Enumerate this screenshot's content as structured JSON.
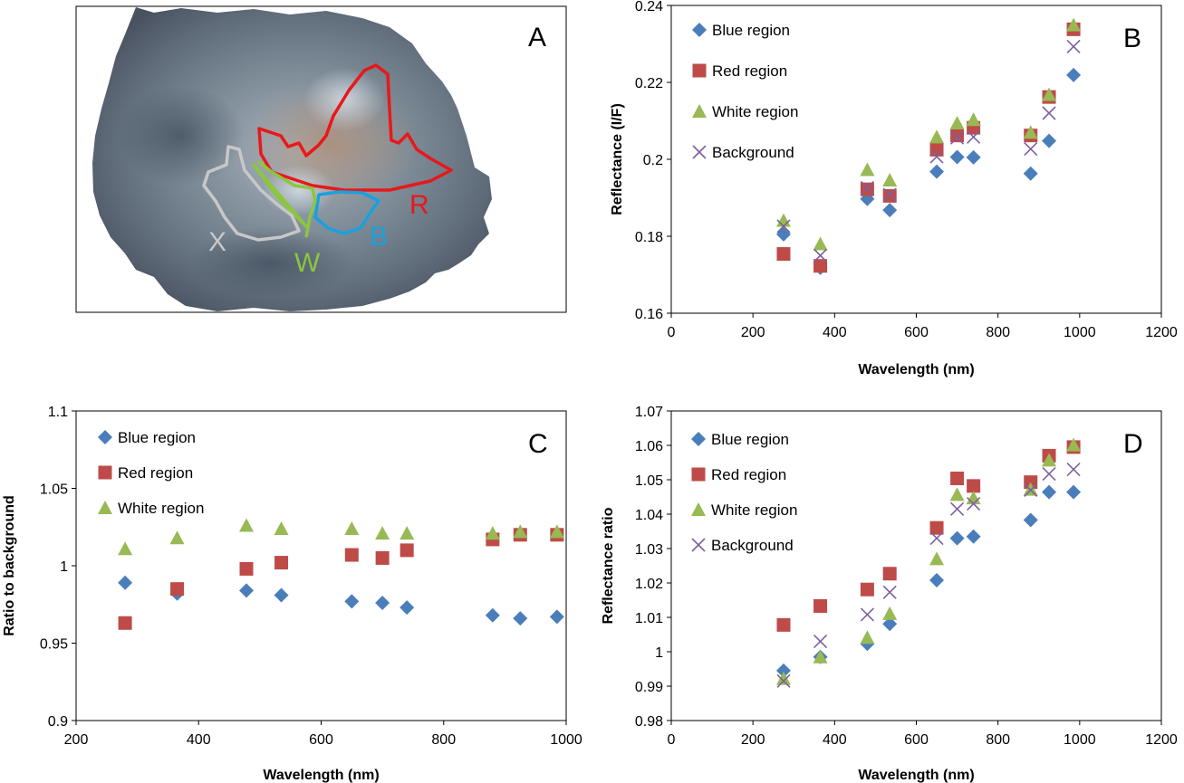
{
  "colors": {
    "blue": "#4a7ebb",
    "red": "#be4b48",
    "green": "#98b954",
    "purple": "#7d60a0",
    "roi_red": "#e8181a",
    "roi_blue": "#1aa0e0",
    "roi_green": "#8cc63e",
    "roi_white": "#c8c8c8"
  },
  "panel_a": {
    "letter": "A",
    "labels": {
      "R": "R",
      "B": "B",
      "W": "W",
      "X": "X"
    }
  },
  "chart_data": [
    {
      "id": "B",
      "type": "scatter",
      "letter": "B",
      "xlabel": "Wavelength (nm)",
      "ylabel": "Reflectance (I/F)",
      "xlim": [
        0,
        1200
      ],
      "ylim": [
        0.16,
        0.24
      ],
      "xticks": [
        0,
        200,
        400,
        600,
        800,
        1000,
        1200
      ],
      "yticks": [
        0.16,
        0.18,
        0.2,
        0.22,
        0.24
      ],
      "xtick_labels": [
        "0",
        "200",
        "400",
        "600",
        "800",
        "1000",
        "1200"
      ],
      "ytick_labels": [
        "0.16",
        "0.18",
        "0.2",
        "0.22",
        "0.24"
      ],
      "legend_position": "top-left",
      "x": [
        275,
        365,
        480,
        535,
        650,
        700,
        740,
        880,
        925,
        985
      ],
      "series": [
        {
          "name": "Blue region",
          "marker": "diamond",
          "color": "#4a7ebb",
          "values": [
            0.1805,
            0.1718,
            0.1897,
            0.1868,
            0.1968,
            0.2006,
            0.2005,
            0.1963,
            0.2048,
            0.2219
          ]
        },
        {
          "name": "Red region",
          "marker": "square",
          "color": "#be4b48",
          "values": [
            0.1754,
            0.1723,
            0.1922,
            0.1905,
            0.2025,
            0.2062,
            0.2082,
            0.2062,
            0.2162,
            0.2338
          ]
        },
        {
          "name": "White region",
          "marker": "triangle",
          "color": "#98b954",
          "values": [
            0.1841,
            0.178,
            0.1973,
            0.1946,
            0.2058,
            0.2094,
            0.2103,
            0.207,
            0.2168,
            0.2349
          ]
        },
        {
          "name": "Background",
          "marker": "x",
          "color": "#7d60a0",
          "values": [
            0.1826,
            0.175,
            0.1926,
            0.1908,
            0.2007,
            0.2056,
            0.2058,
            0.2027,
            0.212,
            0.2293
          ]
        }
      ]
    },
    {
      "id": "C",
      "type": "scatter",
      "letter": "C",
      "xlabel": "Wavelength (nm)",
      "ylabel": "Ratio to background",
      "xlim": [
        200,
        1000
      ],
      "ylim": [
        0.9,
        1.1
      ],
      "xticks": [
        200,
        400,
        600,
        800,
        1000
      ],
      "yticks": [
        0.9,
        0.95,
        1.0,
        1.05,
        1.1
      ],
      "xtick_labels": [
        "200",
        "400",
        "600",
        "800",
        "1000"
      ],
      "ytick_labels": [
        "0.9",
        "0.95",
        "1",
        "1.05",
        "1.1"
      ],
      "legend_position": "top-left",
      "x": [
        280,
        365,
        478,
        535,
        650,
        700,
        740,
        880,
        925,
        985
      ],
      "series": [
        {
          "name": "Blue region",
          "marker": "diamond",
          "color": "#4a7ebb",
          "values": [
            0.989,
            0.982,
            0.984,
            0.981,
            0.977,
            0.976,
            0.973,
            0.968,
            0.966,
            0.967
          ]
        },
        {
          "name": "Red region",
          "marker": "square",
          "color": "#be4b48",
          "values": [
            0.963,
            0.985,
            0.998,
            1.002,
            1.007,
            1.005,
            1.01,
            1.017,
            1.02,
            1.02
          ]
        },
        {
          "name": "White region",
          "marker": "triangle",
          "color": "#98b954",
          "values": [
            1.011,
            1.018,
            1.026,
            1.024,
            1.024,
            1.021,
            1.021,
            1.021,
            1.022,
            1.022
          ]
        }
      ]
    },
    {
      "id": "D",
      "type": "scatter",
      "letter": "D",
      "xlabel": "Wavelength (nm)",
      "ylabel": "Reflectance ratio",
      "xlim": [
        0,
        1200
      ],
      "ylim": [
        0.98,
        1.07
      ],
      "xticks": [
        0,
        200,
        400,
        600,
        800,
        1000,
        1200
      ],
      "yticks": [
        0.98,
        0.99,
        1.0,
        1.01,
        1.02,
        1.03,
        1.04,
        1.05,
        1.06,
        1.07
      ],
      "xtick_labels": [
        "0",
        "200",
        "400",
        "600",
        "800",
        "1000",
        "1200"
      ],
      "ytick_labels": [
        "0.98",
        "0.99",
        "1",
        "1.01",
        "1.02",
        "1.03",
        "1.04",
        "1.05",
        "1.06",
        "1.07"
      ],
      "legend_position": "top-left",
      "x": [
        275,
        365,
        480,
        535,
        650,
        700,
        740,
        880,
        925,
        985
      ],
      "series": [
        {
          "name": "Blue region",
          "marker": "diamond",
          "color": "#4a7ebb",
          "values": [
            0.9945,
            0.9985,
            1.0023,
            1.0081,
            1.0208,
            1.033,
            1.0335,
            1.0383,
            1.0464,
            1.0464
          ]
        },
        {
          "name": "Red region",
          "marker": "square",
          "color": "#be4b48",
          "values": [
            1.0078,
            1.0133,
            1.0181,
            1.0227,
            1.036,
            1.0504,
            1.0482,
            1.0493,
            1.057,
            1.0595
          ]
        },
        {
          "name": "White region",
          "marker": "triangle",
          "color": "#98b954",
          "values": [
            0.9922,
            0.9985,
            1.0041,
            1.0111,
            1.027,
            1.0457,
            1.0447,
            1.0472,
            1.0557,
            1.0601
          ]
        },
        {
          "name": "Background",
          "marker": "x",
          "color": "#7d60a0",
          "values": [
            0.9915,
            1.003,
            1.0108,
            1.0173,
            1.033,
            1.0415,
            1.043,
            1.047,
            1.0517,
            1.053
          ]
        }
      ]
    }
  ]
}
